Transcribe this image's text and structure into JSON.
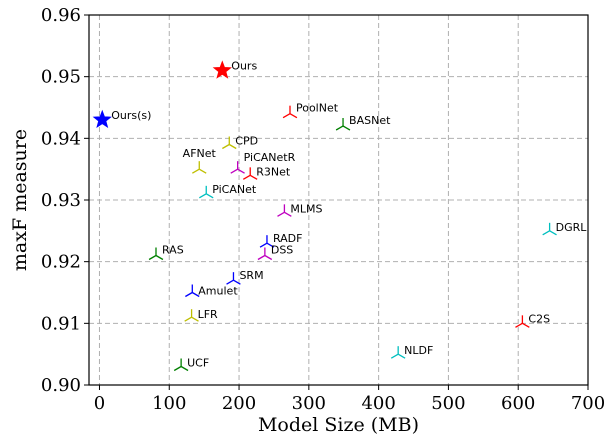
{
  "chart_data": {
    "type": "scatter",
    "title": "",
    "xlabel": "Model Size (MB)",
    "ylabel": "maxF measure",
    "xlim": [
      -15,
      700
    ],
    "ylim": [
      0.9,
      0.96
    ],
    "xticks": [
      0,
      100,
      200,
      300,
      400,
      500,
      600,
      700
    ],
    "yticks": [
      0.9,
      0.91,
      0.92,
      0.93,
      0.94,
      0.95,
      0.96
    ],
    "xtick_labels": [
      "0",
      "100",
      "200",
      "300",
      "400",
      "500",
      "600",
      "700"
    ],
    "ytick_labels": [
      "0.90",
      "0.91",
      "0.92",
      "0.93",
      "0.94",
      "0.95",
      "0.96"
    ],
    "grid": true,
    "points": [
      {
        "label": "Ours",
        "x": 176,
        "y": 0.951,
        "marker": "star",
        "color": "#ff0000"
      },
      {
        "label": "Ours(s)",
        "x": 4,
        "y": 0.943,
        "marker": "star",
        "color": "#0000ff"
      },
      {
        "label": "PoolNet",
        "x": 273,
        "y": 0.944,
        "marker": "tri",
        "color": "#ff0000"
      },
      {
        "label": "BASNet",
        "x": 349,
        "y": 0.942,
        "marker": "tri",
        "color": "#008000"
      },
      {
        "label": "CPD",
        "x": 186,
        "y": 0.939,
        "marker": "tri",
        "color": "#bfbf00"
      },
      {
        "label": "AFNet",
        "x": 143,
        "y": 0.935,
        "marker": "tri",
        "color": "#bfbf00"
      },
      {
        "label": "PiCANetR",
        "x": 198,
        "y": 0.935,
        "marker": "tri",
        "color": "#bf00bf"
      },
      {
        "label": "R3Net",
        "x": 216,
        "y": 0.934,
        "marker": "tri",
        "color": "#ff0000"
      },
      {
        "label": "PiCANet",
        "x": 153,
        "y": 0.931,
        "marker": "tri",
        "color": "#00bfbf"
      },
      {
        "label": "MLMS",
        "x": 265,
        "y": 0.928,
        "marker": "tri",
        "color": "#bf00bf"
      },
      {
        "label": "DGRL",
        "x": 645,
        "y": 0.925,
        "marker": "tri",
        "color": "#00bfbf"
      },
      {
        "label": "RADF",
        "x": 240,
        "y": 0.923,
        "marker": "tri",
        "color": "#0000ff"
      },
      {
        "label": "RAS",
        "x": 81,
        "y": 0.921,
        "marker": "tri",
        "color": "#008000"
      },
      {
        "label": "DSS",
        "x": 237,
        "y": 0.921,
        "marker": "tri",
        "color": "#bf00bf"
      },
      {
        "label": "SRM",
        "x": 192,
        "y": 0.917,
        "marker": "tri",
        "color": "#0000ff"
      },
      {
        "label": "Amulet",
        "x": 133,
        "y": 0.915,
        "marker": "tri",
        "color": "#0000ff"
      },
      {
        "label": "LFR",
        "x": 132,
        "y": 0.911,
        "marker": "tri",
        "color": "#bfbf00"
      },
      {
        "label": "C2S",
        "x": 606,
        "y": 0.91,
        "marker": "tri",
        "color": "#ff0000"
      },
      {
        "label": "NLDF",
        "x": 428,
        "y": 0.905,
        "marker": "tri",
        "color": "#00bfbf"
      },
      {
        "label": "UCF",
        "x": 117,
        "y": 0.903,
        "marker": "tri",
        "color": "#008000"
      }
    ]
  }
}
